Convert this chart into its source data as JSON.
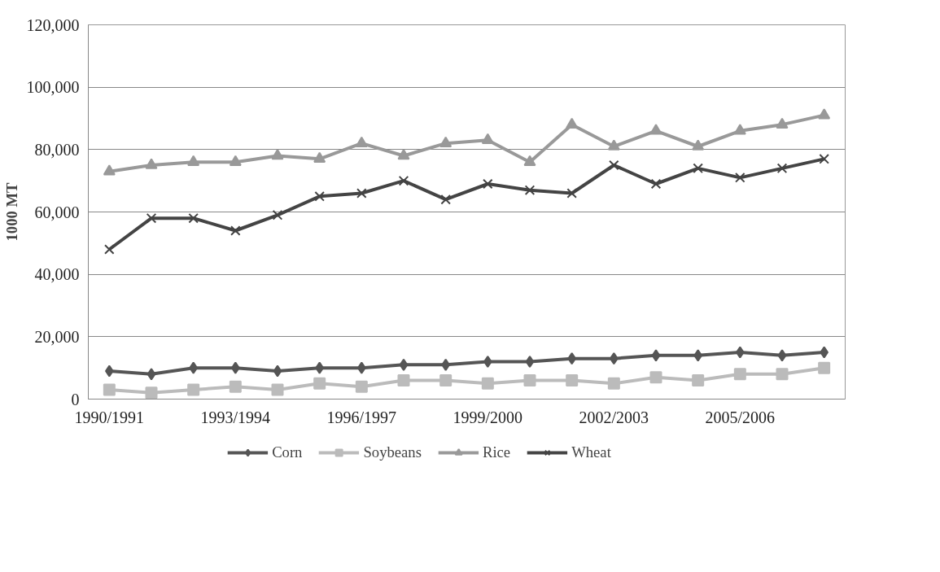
{
  "chart_data": {
    "type": "line",
    "ylabel": "1000 MT",
    "categories": [
      "1990/1991",
      null,
      null,
      "1993/1994",
      null,
      null,
      "1996/1997",
      null,
      null,
      "1999/2000",
      null,
      null,
      "2002/2003",
      null,
      null,
      "2005/2006",
      null,
      null
    ],
    "series": [
      {
        "name": "Corn",
        "color": "#555555",
        "marker": "diamond",
        "values": [
          9000,
          8000,
          10000,
          10000,
          9000,
          10000,
          10000,
          11000,
          11000,
          12000,
          12000,
          13000,
          13000,
          14000,
          14000,
          15000,
          14000,
          15000
        ]
      },
      {
        "name": "Soybeans",
        "color": "#bbbbbb",
        "marker": "square",
        "values": [
          3000,
          2000,
          3000,
          4000,
          3000,
          5000,
          4000,
          6000,
          6000,
          5000,
          6000,
          6000,
          5000,
          7000,
          6000,
          8000,
          8000,
          10000
        ]
      },
      {
        "name": "Rice",
        "color": "#999999",
        "marker": "triangle",
        "values": [
          73000,
          75000,
          76000,
          76000,
          78000,
          77000,
          82000,
          78000,
          82000,
          83000,
          76000,
          88000,
          81000,
          86000,
          81000,
          86000,
          88000,
          91000
        ]
      },
      {
        "name": "Wheat",
        "color": "#444444",
        "marker": "cross",
        "values": [
          48000,
          58000,
          58000,
          54000,
          59000,
          65000,
          66000,
          70000,
          64000,
          69000,
          67000,
          66000,
          75000,
          69000,
          74000,
          71000,
          74000,
          77000
        ]
      }
    ],
    "ylim": [
      0,
      120000
    ],
    "yticks": [
      {
        "value": 0,
        "label": "0"
      },
      {
        "value": 20000,
        "label": "20,000"
      },
      {
        "value": 40000,
        "label": "40,000"
      },
      {
        "value": 60000,
        "label": "60,000"
      },
      {
        "value": 80000,
        "label": "80,000"
      },
      {
        "value": 100000,
        "label": "100,000"
      },
      {
        "value": 120000,
        "label": "120,000"
      }
    ],
    "grid": "y",
    "legend": "bottom",
    "line_style": "solid"
  }
}
